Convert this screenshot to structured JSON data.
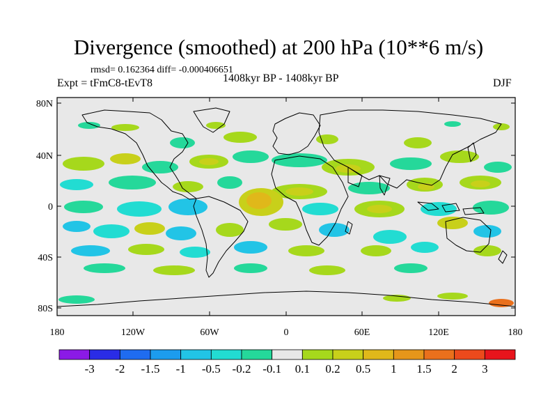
{
  "title": "Divergence (smoothed) at 200 hPa (10**6 m/s)",
  "stats": "rmsd= 0.162364 diff= -0.000406651",
  "experiment": "Expt = tFmC8-tEvT8",
  "period": "1408kyr BP - 1408kyr BP",
  "season": "DJF",
  "lat_labels": [
    "80N",
    "40N",
    "0",
    "40S",
    "80S"
  ],
  "lon_labels": [
    "180",
    "120W",
    "60W",
    "0",
    "60E",
    "120E",
    "180"
  ],
  "colorbar": {
    "colors": [
      "#8b1ae6",
      "#2a2ce6",
      "#1f6cf0",
      "#1c9cee",
      "#22c4e6",
      "#22dcd2",
      "#25d89a",
      "#e8e8e8",
      "#a6d81c",
      "#c8d01a",
      "#e0b81a",
      "#e6961a",
      "#ea701c",
      "#ec4a1c",
      "#e8141c"
    ],
    "labels": [
      "-3",
      "-2",
      "-1.5",
      "-1",
      "-0.5",
      "-0.2",
      "-0.1",
      "0.1",
      "0.2",
      "0.5",
      "1",
      "1.5",
      "2",
      "3"
    ]
  },
  "colors": {
    "background": "#e8e8e8",
    "positive_weak": "#a6d81c",
    "positive_mid": "#c8d01a",
    "positive_strong": "#e0b81a",
    "negative_weak": "#25d89a",
    "negative_mid": "#22dcd2",
    "negative_strong": "#22c4e6"
  }
}
